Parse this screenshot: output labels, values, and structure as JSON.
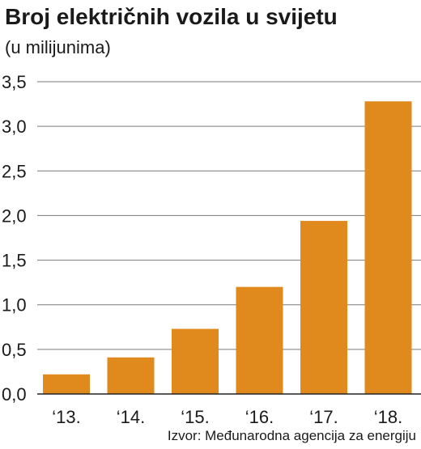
{
  "chart_data": {
    "type": "bar",
    "title": "Broj električnih vozila u svijetu",
    "subtitle": "(u milijunima)",
    "categories": [
      "‘13.",
      "‘14.",
      "‘15.",
      "‘16.",
      "‘17.",
      "‘18."
    ],
    "values": [
      0.22,
      0.41,
      0.73,
      1.2,
      1.94,
      3.28
    ],
    "ylim": [
      0,
      3.5
    ],
    "yticks": [
      "0,0",
      "0,5",
      "1,0",
      "1,5",
      "2,0",
      "2,5",
      "3,0",
      "3,5"
    ],
    "grid": true,
    "bar_color": "#e08a1e",
    "source": "Izvor: Međunarodna agencija za energiju"
  }
}
